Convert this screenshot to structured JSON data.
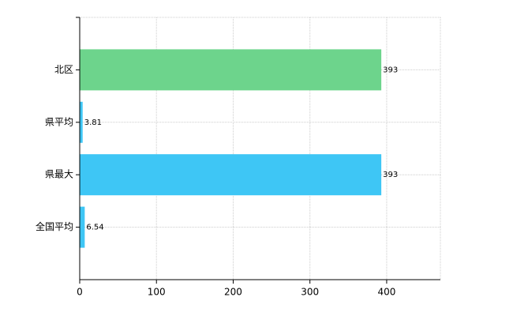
{
  "chart_data": {
    "type": "bar",
    "orientation": "horizontal",
    "categories": [
      "北区",
      "県平均",
      "県最大",
      "全国平均"
    ],
    "values": [
      393,
      3.81,
      393,
      6.54
    ],
    "colors": [
      "#6dd48c",
      "#3ec6f5",
      "#3ec6f5",
      "#3ec6f5"
    ],
    "xlim": [
      0,
      470
    ],
    "xticks": [
      0,
      100,
      200,
      300,
      400
    ],
    "grid": true
  }
}
